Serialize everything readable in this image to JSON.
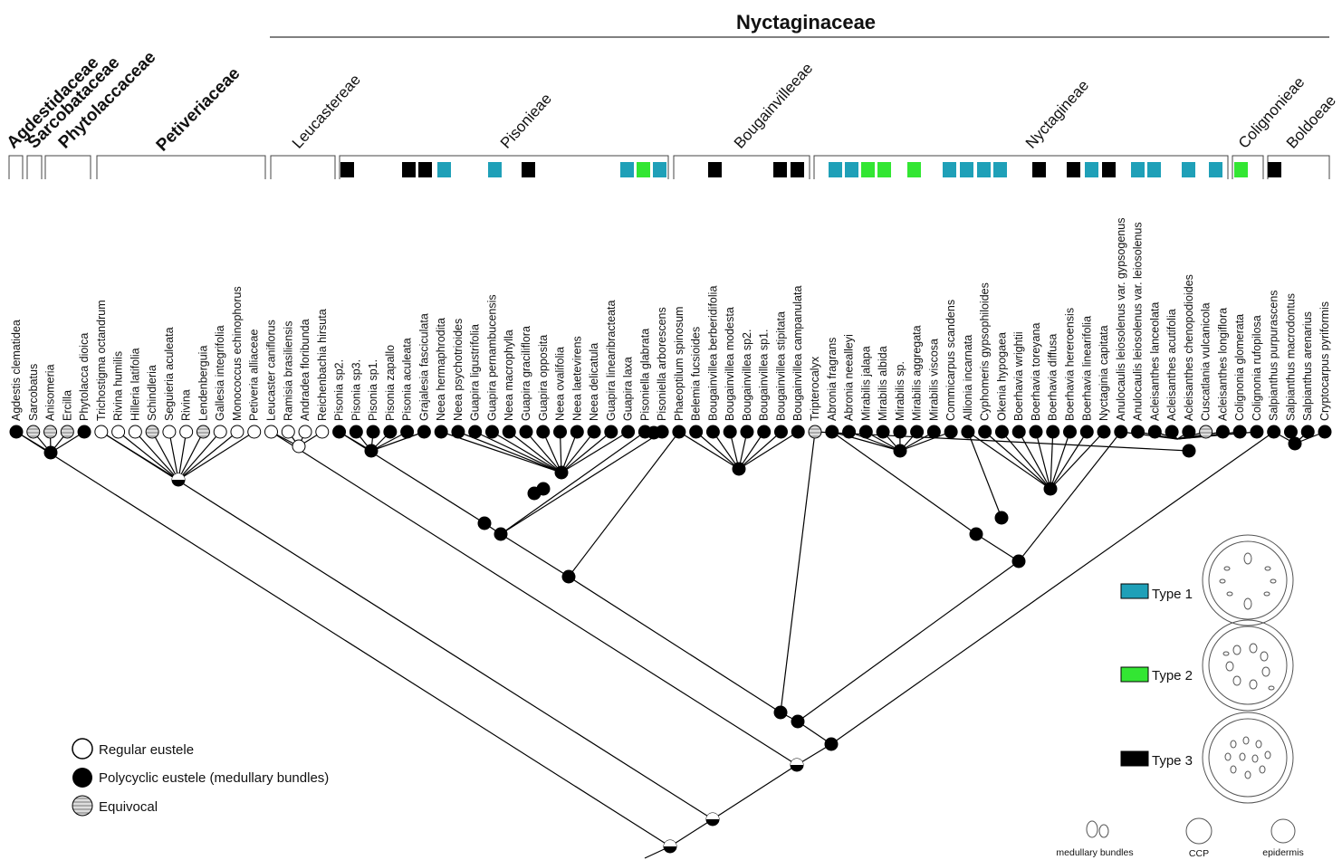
{
  "title": "Nyctaginaceae",
  "families": [
    "Agdestidaceae",
    "Sarcobataceae",
    "Phytolaccaceae",
    "Petiveriaceae"
  ],
  "tribes": [
    "Leucastereae",
    "Pisonieae",
    "Bougainvilleeae",
    "Nyctagineae",
    "Colignonieae",
    "Boldoeae"
  ],
  "taxa": [
    "Agdestis clematidea",
    "Sarcobatus",
    "Anisomeria",
    "Ercilla",
    "Phytolacca dioica",
    "Trichostigma octandrum",
    "Rivina humilis",
    "Hilleria latifolia",
    "Schindleria",
    "Seguieria aculeata",
    "Rivina",
    "Lendenberguia",
    "Gallesia integrifolia",
    "Monococcus  echinophorus",
    "Petiveria alliaceae",
    "Leucaster caniflorus",
    "Ramisia brasiliensis",
    "Andradea floribunda",
    "Reichenbachia hirsuta",
    "Pisonia sp2.",
    "Pisonia sp3.",
    "Pisonia sp1.",
    "Pisonia zapallo",
    "Pisonia aculeata",
    "Grajalesia fasciculata",
    "Neea hermaphrodita",
    "Neea psychotrioides",
    "Guapira ligustrifolia",
    "Guapira pernambucensis",
    "Neea macrophylla",
    "Guapira graciliflora",
    "Guapira opposita",
    "Neea ovalifolia",
    "Neea laetevirens",
    "Neea delicatula",
    "Guapira linearibracteata",
    "Guapira laxa",
    "Pisoniella glabrata",
    "Pisoniella arborescens",
    "Phaeoptilum spinosum",
    "Belemia fucsioides",
    "Bougainvillea berberidifolia",
    "Bougainvillea modesta",
    "Bougainvillea sp2.",
    "Bougainvillea sp1.",
    "Bougainvillea stipitata",
    "Bougainvillea campanulata",
    "Tripterocalyx",
    "Abronia fragrans",
    "Abronia neealleyi",
    "Mirabilis jalapa",
    "Mirabilis albida",
    "Mirabilis sp.",
    "Mirabilis aggregata",
    "Mirabilis viscosa",
    "Commicarpus scandens",
    "Allionia incarnata",
    "Cyphomeris gypsophiloides",
    "Okenia hypogaea",
    "Boerhavia wrightii",
    "Boerhavia toreyana",
    "Boerhavia diffusa",
    "Boerhavia hereroensis",
    "Boerhavia linearifolia",
    "Nyctaginia capitata",
    "Anulocaulis leiosolenus var. gypsogenus",
    "Anulocaulis leiosolenus var. leiosolenus",
    "Acleisanthes lanceolata",
    "Acleisanthes acutifolia",
    "Acleisanthes chenopodioides",
    "Cuscatlania vulcanicola",
    "Acleisanthes longiflora",
    "Colignonia glomerata",
    "Colignonia rufopilosa",
    "Salpianthus purpurascens",
    "Salpianthus macrodontus",
    "Salpianthus arenarius",
    "Cryptocarpus pyriformis"
  ],
  "legend": {
    "states": [
      "Regular eustele",
      "Polycyclic eustele (medullary bundles)",
      "Equivocal"
    ],
    "types": [
      "Type 1",
      "Type 2",
      "Type 3"
    ],
    "anatomy": [
      "medullary bundles",
      "CCP",
      "epidermis"
    ]
  }
}
